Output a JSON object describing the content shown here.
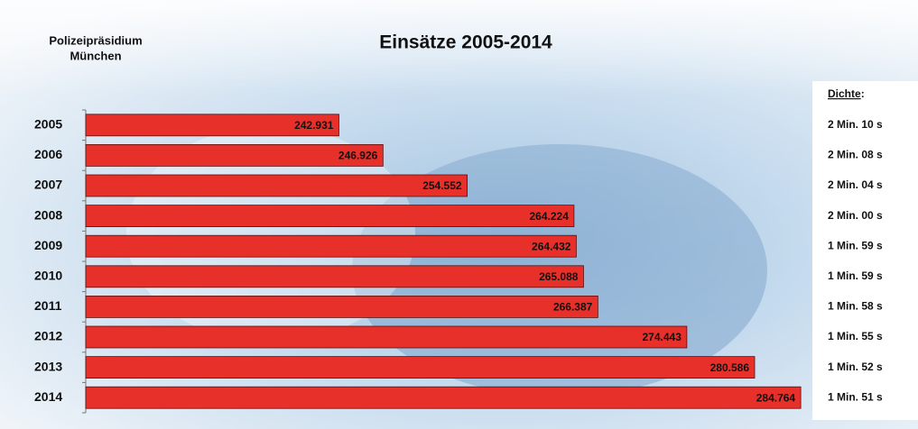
{
  "chart_data": {
    "type": "bar",
    "orientation": "horizontal",
    "title": "Einsätze 2005-2014",
    "org": [
      "Polizeipräsidium",
      "München"
    ],
    "categories": [
      "2005",
      "2006",
      "2007",
      "2008",
      "2009",
      "2010",
      "2011",
      "2012",
      "2013",
      "2014"
    ],
    "values": [
      242931,
      246926,
      254552,
      264224,
      264432,
      265088,
      266387,
      274443,
      280586,
      284764
    ],
    "value_labels": [
      "242.931",
      "246.926",
      "254.552",
      "264.224",
      "264.432",
      "265.088",
      "266.387",
      "274.443",
      "280.586",
      "284.764"
    ],
    "color": "#e8302a",
    "xlim": [
      220000,
      285000
    ],
    "density_header": [
      "Dichte",
      ":"
    ],
    "density_labels": [
      "2 Min. 10 s",
      "2 Min. 08 s",
      "2 Min. 04 s",
      "2 Min. 00 s",
      "1 Min. 59 s",
      "1 Min. 59 s",
      "1 Min. 58 s",
      "1 Min. 55 s",
      "1 Min. 52 s",
      "1 Min. 51 s"
    ]
  }
}
